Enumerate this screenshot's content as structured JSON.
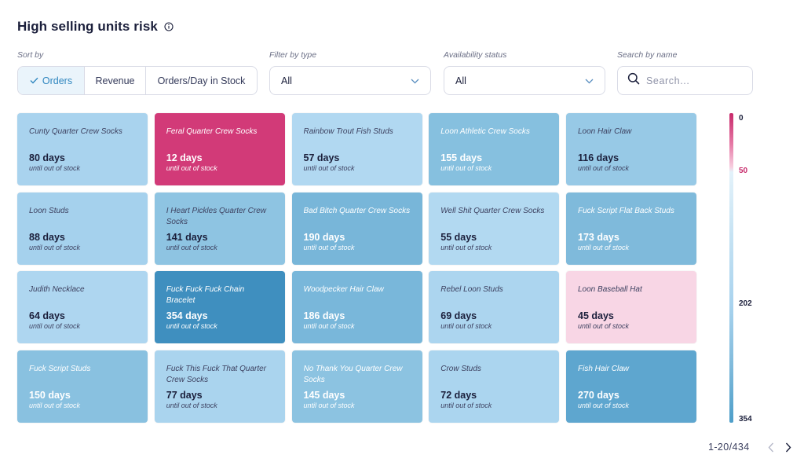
{
  "header": {
    "title": "High selling units risk",
    "info_icon": "info-circle-icon"
  },
  "controls": {
    "sort_label": "Sort by",
    "sort_options": [
      {
        "label": "Orders",
        "active": true,
        "icon": "check-icon"
      },
      {
        "label": "Revenue",
        "active": false
      },
      {
        "label": "Orders/Day in Stock",
        "active": false
      }
    ],
    "type_label": "Filter by type",
    "type_value": "All",
    "availability_label": "Availability status",
    "availability_value": "All",
    "search_label": "Search by name",
    "search_placeholder": "Search..."
  },
  "tiles": [
    {
      "name": "Cunty Quarter Crew Socks",
      "days": "80 days",
      "sub": "until out of stock",
      "color": "#a9d3ee",
      "dark": false
    },
    {
      "name": "Feral Quarter Crew Socks",
      "days": "12 days",
      "sub": "until out of stock",
      "color": "#d23a78",
      "dark": true
    },
    {
      "name": "Rainbow Trout Fish Studs",
      "days": "57 days",
      "sub": "until out of stock",
      "color": "#b1d8f1",
      "dark": false
    },
    {
      "name": "Loon Athletic Crew Socks",
      "days": "155 days",
      "sub": "until out of stock",
      "color": "#86c0df",
      "dark": true
    },
    {
      "name": "Loon Hair Claw",
      "days": "116 days",
      "sub": "until out of stock",
      "color": "#97c9e6",
      "dark": false
    },
    {
      "name": "Loon Studs",
      "days": "88 days",
      "sub": "until out of stock",
      "color": "#a5d1ed",
      "dark": false
    },
    {
      "name": "I Heart Pickles Quarter Crew Socks",
      "days": "141 days",
      "sub": "until out of stock",
      "color": "#8ec4e2",
      "dark": false
    },
    {
      "name": "Bad Bitch Quarter Crew Socks",
      "days": "190 days",
      "sub": "until out of stock",
      "color": "#78b6d9",
      "dark": true
    },
    {
      "name": "Well Shit Quarter Crew Socks",
      "days": "55 days",
      "sub": "until out of stock",
      "color": "#b2d9f1",
      "dark": false
    },
    {
      "name": "Fuck Script Flat Back Studs",
      "days": "173 days",
      "sub": "until out of stock",
      "color": "#7fbadb",
      "dark": true
    },
    {
      "name": "Judith Necklace",
      "days": "64 days",
      "sub": "until out of stock",
      "color": "#aed6f0",
      "dark": false
    },
    {
      "name": "Fuck Fuck Fuck Chain Bracelet",
      "days": "354 days",
      "sub": "until out of stock",
      "color": "#3f8fbf",
      "dark": true
    },
    {
      "name": "Woodpecker Hair Claw",
      "days": "186 days",
      "sub": "until out of stock",
      "color": "#79b7da",
      "dark": true
    },
    {
      "name": "Rebel Loon Studs",
      "days": "69 days",
      "sub": "until out of stock",
      "color": "#acd5ef",
      "dark": false
    },
    {
      "name": "Loon Baseball Hat",
      "days": "45 days",
      "sub": "until out of stock",
      "color": "#f8d6e5",
      "dark": false
    },
    {
      "name": "Fuck Script Studs",
      "days": "150 days",
      "sub": "until out of stock",
      "color": "#89c1e0",
      "dark": true
    },
    {
      "name": "Fuck This Fuck That Quarter Crew Socks",
      "days": "77 days",
      "sub": "until out of stock",
      "color": "#aad4ee",
      "dark": false
    },
    {
      "name": "No Thank You Quarter Crew Socks",
      "days": "145 days",
      "sub": "until out of stock",
      "color": "#8cc3e1",
      "dark": true
    },
    {
      "name": "Crow Studs",
      "days": "72 days",
      "sub": "until out of stock",
      "color": "#abd5ef",
      "dark": false
    },
    {
      "name": "Fish Hair Claw",
      "days": "270 days",
      "sub": "until out of stock",
      "color": "#5ea6cf",
      "dark": true
    }
  ],
  "legend": {
    "labels": [
      {
        "text": "0",
        "pink": false
      },
      {
        "text": "50",
        "pink": true
      },
      {
        "text": "202",
        "pink": false
      },
      {
        "text": "354",
        "pink": false
      }
    ]
  },
  "pagination": {
    "text": "1-20/434",
    "prev_icon": "chevron-left-icon",
    "next_icon": "chevron-right-icon"
  }
}
